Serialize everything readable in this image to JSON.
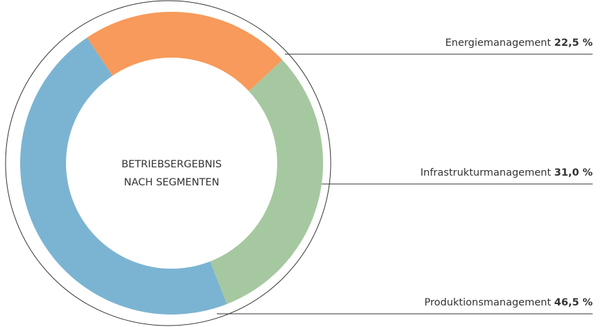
{
  "chart_data": {
    "type": "donut",
    "title": [
      "BETRIEBSERGEBNIS",
      "NACH SEGMENTEN"
    ],
    "categories": [
      "Energiemanagement",
      "Infrastrukturmanagement",
      "Produktionsmanagement"
    ],
    "values": [
      22.5,
      31.0,
      46.5
    ],
    "value_labels": [
      "22,5 %",
      "31,0 %",
      "46,5 %"
    ],
    "colors": [
      "#f79a5b",
      "#a6c8a0",
      "#7bb4d2"
    ]
  }
}
